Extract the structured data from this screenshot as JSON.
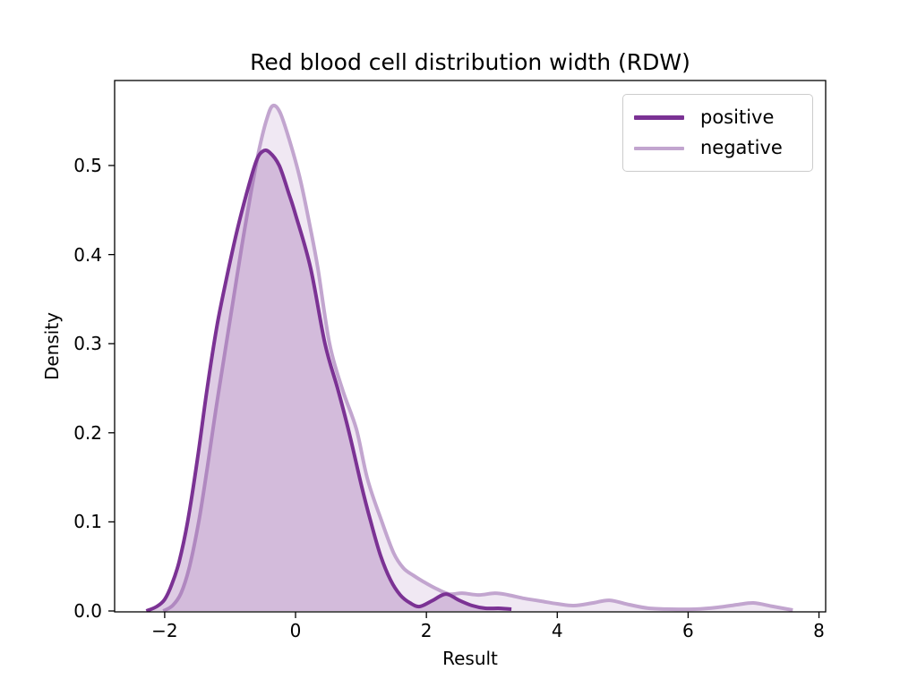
{
  "chart_data": {
    "type": "area",
    "subtype": "kde-density",
    "title": "Red blood cell distribution width (RDW)",
    "xlabel": "Result",
    "ylabel": "Density",
    "xlim": [
      -2.765,
      8.102
    ],
    "ylim": [
      -0.001,
      0.5954
    ],
    "grid": false,
    "legend_position": "upper right",
    "x_ticks": [
      {
        "value": -2,
        "label": "−2"
      },
      {
        "value": 0,
        "label": "0"
      },
      {
        "value": 2,
        "label": "2"
      },
      {
        "value": 4,
        "label": "4"
      },
      {
        "value": 6,
        "label": "6"
      },
      {
        "value": 8,
        "label": "8"
      }
    ],
    "y_ticks": [
      {
        "value": 0.0,
        "label": "0.0"
      },
      {
        "value": 0.1,
        "label": "0.1"
      },
      {
        "value": 0.2,
        "label": "0.2"
      },
      {
        "value": 0.3,
        "label": "0.3"
      },
      {
        "value": 0.4,
        "label": "0.4"
      },
      {
        "value": 0.5,
        "label": "0.5"
      }
    ],
    "colors": {
      "spine": "#000000",
      "text": "#000000",
      "legend_border": "#cccccc",
      "background": "#ffffff"
    },
    "series": [
      {
        "name": "positive",
        "color": "#7b3294",
        "fill_opacity": 0.25,
        "line_width": 4,
        "points": [
          [
            -2.28,
            0.0
          ],
          [
            -2.12,
            0.005
          ],
          [
            -2.0,
            0.013
          ],
          [
            -1.89,
            0.03
          ],
          [
            -1.78,
            0.055
          ],
          [
            -1.65,
            0.1
          ],
          [
            -1.5,
            0.17
          ],
          [
            -1.35,
            0.25
          ],
          [
            -1.2,
            0.32
          ],
          [
            -1.05,
            0.375
          ],
          [
            -0.9,
            0.425
          ],
          [
            -0.75,
            0.468
          ],
          [
            -0.6,
            0.505
          ],
          [
            -0.5,
            0.516
          ],
          [
            -0.4,
            0.515
          ],
          [
            -0.25,
            0.5
          ],
          [
            -0.1,
            0.468
          ],
          [
            0.0,
            0.445
          ],
          [
            0.23,
            0.385
          ],
          [
            0.45,
            0.3
          ],
          [
            0.65,
            0.248
          ],
          [
            0.82,
            0.2
          ],
          [
            1.0,
            0.143
          ],
          [
            1.15,
            0.1
          ],
          [
            1.3,
            0.062
          ],
          [
            1.45,
            0.035
          ],
          [
            1.6,
            0.018
          ],
          [
            1.75,
            0.009
          ],
          [
            1.9,
            0.005
          ],
          [
            2.1,
            0.012
          ],
          [
            2.3,
            0.019
          ],
          [
            2.5,
            0.012
          ],
          [
            2.7,
            0.006
          ],
          [
            2.9,
            0.003
          ],
          [
            3.1,
            0.003
          ],
          [
            3.3,
            0.002
          ]
        ]
      },
      {
        "name": "negative",
        "color": "#c2a5cf",
        "fill_opacity": 0.25,
        "line_width": 4,
        "points": [
          [
            -2.02,
            0.0
          ],
          [
            -1.88,
            0.006
          ],
          [
            -1.75,
            0.02
          ],
          [
            -1.62,
            0.05
          ],
          [
            -1.48,
            0.1
          ],
          [
            -1.35,
            0.16
          ],
          [
            -1.22,
            0.225
          ],
          [
            -1.08,
            0.29
          ],
          [
            -0.95,
            0.35
          ],
          [
            -0.82,
            0.41
          ],
          [
            -0.68,
            0.47
          ],
          [
            -0.55,
            0.52
          ],
          [
            -0.44,
            0.552
          ],
          [
            -0.35,
            0.567
          ],
          [
            -0.24,
            0.56
          ],
          [
            -0.1,
            0.53
          ],
          [
            0.07,
            0.485
          ],
          [
            0.22,
            0.432
          ],
          [
            0.34,
            0.385
          ],
          [
            0.52,
            0.3
          ],
          [
            0.72,
            0.248
          ],
          [
            0.93,
            0.204
          ],
          [
            1.1,
            0.148
          ],
          [
            1.32,
            0.1
          ],
          [
            1.5,
            0.065
          ],
          [
            1.65,
            0.048
          ],
          [
            1.8,
            0.04
          ],
          [
            1.95,
            0.033
          ],
          [
            2.15,
            0.025
          ],
          [
            2.35,
            0.019
          ],
          [
            2.55,
            0.02
          ],
          [
            2.8,
            0.018
          ],
          [
            3.05,
            0.02
          ],
          [
            3.25,
            0.018
          ],
          [
            3.5,
            0.014
          ],
          [
            3.75,
            0.011
          ],
          [
            4.0,
            0.008
          ],
          [
            4.25,
            0.006
          ],
          [
            4.55,
            0.009
          ],
          [
            4.8,
            0.012
          ],
          [
            5.1,
            0.007
          ],
          [
            5.4,
            0.003
          ],
          [
            5.75,
            0.002
          ],
          [
            6.1,
            0.002
          ],
          [
            6.45,
            0.004
          ],
          [
            6.75,
            0.007
          ],
          [
            7.0,
            0.009
          ],
          [
            7.3,
            0.005
          ],
          [
            7.6,
            0.001
          ]
        ]
      }
    ]
  }
}
